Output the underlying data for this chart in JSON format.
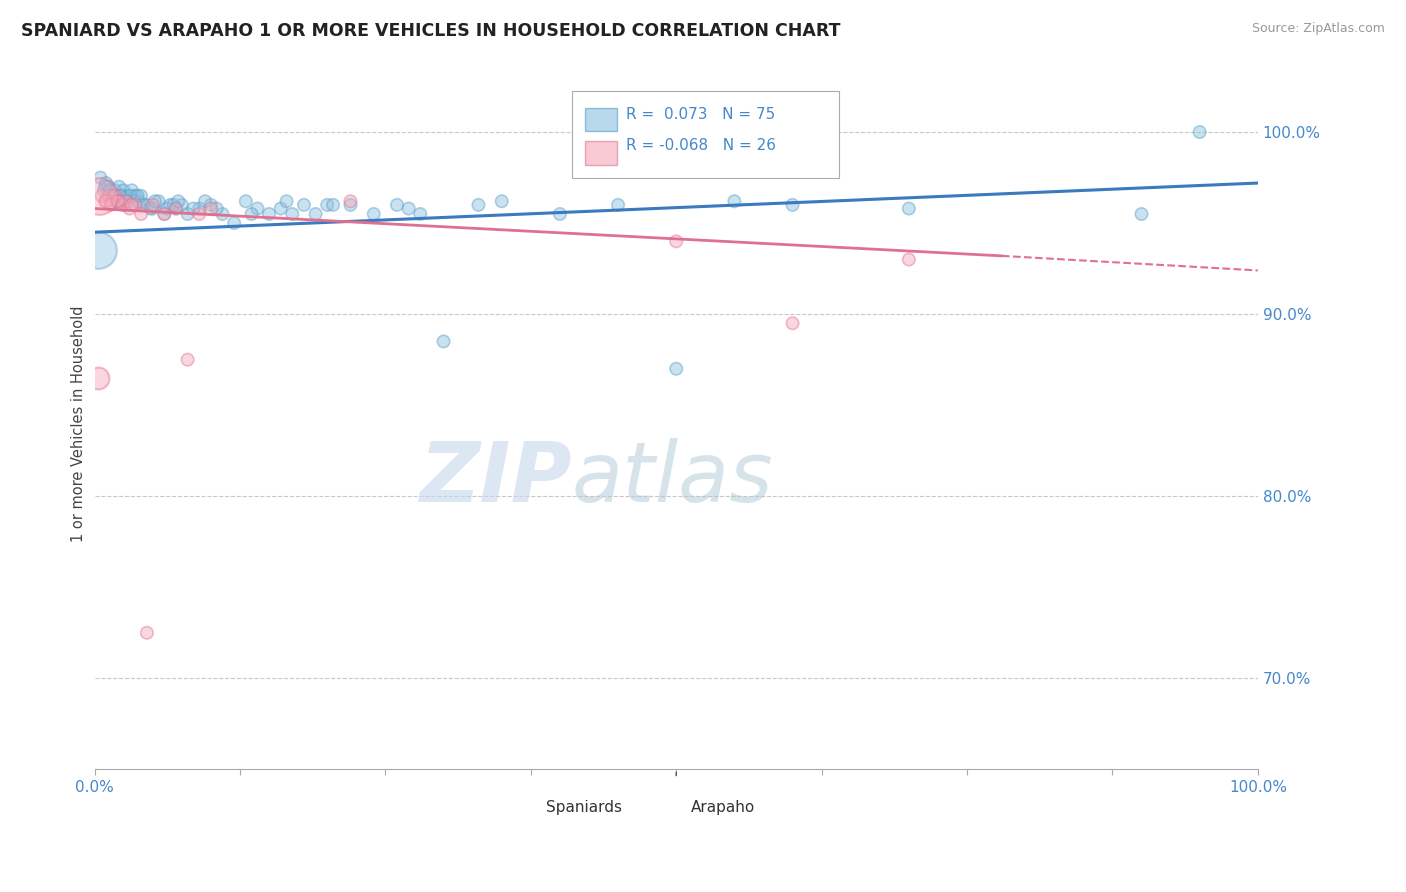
{
  "title": "SPANIARD VS ARAPAHO 1 OR MORE VEHICLES IN HOUSEHOLD CORRELATION CHART",
  "source": "Source: ZipAtlas.com",
  "ylabel": "1 or more Vehicles in Household",
  "legend_label1": "Spaniards",
  "legend_label2": "Arapaho",
  "r1": 0.073,
  "n1": 75,
  "r2": -0.068,
  "n2": 26,
  "blue_color": "#89bfdf",
  "blue_edge_color": "#5a9ec9",
  "blue_line_color": "#3a7abf",
  "pink_color": "#f5a8b8",
  "pink_edge_color": "#e07090",
  "pink_line_color": "#e07090",
  "watermark_zip": "ZIP",
  "watermark_atlas": "atlas",
  "yaxis_ticks": [
    70.0,
    80.0,
    90.0,
    100.0
  ],
  "blue_scatter_x": [
    0.5,
    0.8,
    1.0,
    1.2,
    1.5,
    1.8,
    2.0,
    2.1,
    2.3,
    2.5,
    2.7,
    2.9,
    3.0,
    3.2,
    3.5,
    3.8,
    4.0,
    4.5,
    5.0,
    5.5,
    6.0,
    6.5,
    7.0,
    7.5,
    8.0,
    9.0,
    10.0,
    11.0,
    12.0,
    13.0,
    14.0,
    15.0,
    16.0,
    17.0,
    18.0,
    19.0,
    20.0,
    22.0,
    24.0,
    26.0,
    28.0,
    30.0,
    35.0,
    40.0,
    45.0,
    50.0,
    55.0,
    60.0,
    0.9,
    1.3,
    1.6,
    1.9,
    2.2,
    2.6,
    3.1,
    3.4,
    3.7,
    4.2,
    4.8,
    5.2,
    6.2,
    6.8,
    7.2,
    8.5,
    9.5,
    10.5,
    13.5,
    16.5,
    20.5,
    27.0,
    33.0,
    70.0,
    90.0,
    95.0
  ],
  "blue_scatter_y": [
    97.5,
    96.8,
    97.2,
    97.0,
    96.5,
    96.8,
    96.2,
    97.0,
    96.5,
    96.8,
    96.2,
    96.5,
    96.3,
    96.8,
    96.5,
    96.2,
    96.5,
    96.0,
    95.8,
    96.2,
    95.5,
    96.0,
    95.8,
    96.0,
    95.5,
    95.8,
    96.0,
    95.5,
    95.0,
    96.2,
    95.8,
    95.5,
    95.8,
    95.5,
    96.0,
    95.5,
    96.0,
    96.0,
    95.5,
    96.0,
    95.5,
    88.5,
    96.2,
    95.5,
    96.0,
    87.0,
    96.2,
    96.0,
    97.0,
    96.8,
    96.5,
    96.2,
    96.5,
    96.0,
    96.5,
    96.2,
    96.5,
    96.0,
    95.8,
    96.2,
    95.8,
    96.0,
    96.2,
    95.8,
    96.2,
    95.8,
    95.5,
    96.2,
    96.0,
    95.8,
    96.0,
    95.8,
    95.5,
    100.0
  ],
  "blue_scatter_size": [
    80,
    80,
    80,
    80,
    80,
    80,
    80,
    80,
    80,
    80,
    80,
    80,
    80,
    80,
    80,
    80,
    80,
    80,
    80,
    80,
    80,
    80,
    80,
    80,
    80,
    80,
    80,
    80,
    80,
    80,
    80,
    80,
    80,
    80,
    80,
    80,
    80,
    80,
    80,
    80,
    80,
    80,
    80,
    80,
    80,
    80,
    80,
    80,
    80,
    80,
    80,
    80,
    80,
    80,
    80,
    80,
    80,
    80,
    80,
    80,
    80,
    80,
    80,
    80,
    80,
    80,
    80,
    80,
    80,
    80,
    80,
    80,
    80,
    80
  ],
  "blue_big_x": [
    0.3
  ],
  "blue_big_y": [
    93.5
  ],
  "blue_big_size": [
    700
  ],
  "pink_scatter_x": [
    0.6,
    0.9,
    1.2,
    1.5,
    1.8,
    2.1,
    2.4,
    2.7,
    3.0,
    3.5,
    4.0,
    5.0,
    6.0,
    7.0,
    8.0,
    9.0,
    10.0,
    22.0,
    50.0,
    60.0,
    70.0,
    1.0,
    1.4,
    2.0,
    3.2,
    4.5
  ],
  "pink_scatter_y": [
    96.5,
    96.2,
    96.5,
    96.2,
    96.5,
    96.2,
    96.0,
    96.2,
    95.8,
    96.0,
    95.5,
    96.0,
    95.5,
    95.8,
    87.5,
    95.5,
    95.8,
    96.2,
    94.0,
    89.5,
    93.0,
    96.2,
    96.0,
    96.2,
    96.0,
    72.5
  ],
  "pink_scatter_size": [
    80,
    80,
    80,
    80,
    80,
    80,
    80,
    80,
    80,
    80,
    80,
    80,
    80,
    80,
    80,
    80,
    80,
    80,
    80,
    80,
    80,
    80,
    80,
    80,
    80,
    80
  ],
  "pink_big_x": [
    0.4
  ],
  "pink_big_y": [
    96.5
  ],
  "pink_big_size": [
    700
  ],
  "pink_big2_x": [
    0.3
  ],
  "pink_big2_y": [
    86.5
  ],
  "pink_big2_size": [
    250
  ],
  "blue_line_x0": 0,
  "blue_line_x1": 100,
  "blue_line_y0": 94.5,
  "blue_line_y1": 97.2,
  "pink_line_x0": 0,
  "pink_line_x1": 78,
  "pink_line_y0": 95.8,
  "pink_line_y1": 93.2,
  "pink_dash_x0": 78,
  "pink_dash_x1": 100,
  "pink_dash_y0": 93.2,
  "pink_dash_y1": 92.4,
  "xlim": [
    0,
    100
  ],
  "ylim": [
    65,
    103
  ],
  "background_color": "#ffffff",
  "grid_color": "#c8c8c8",
  "axis_label_color": "#4488cc",
  "title_color": "#222222",
  "source_color": "#999999"
}
